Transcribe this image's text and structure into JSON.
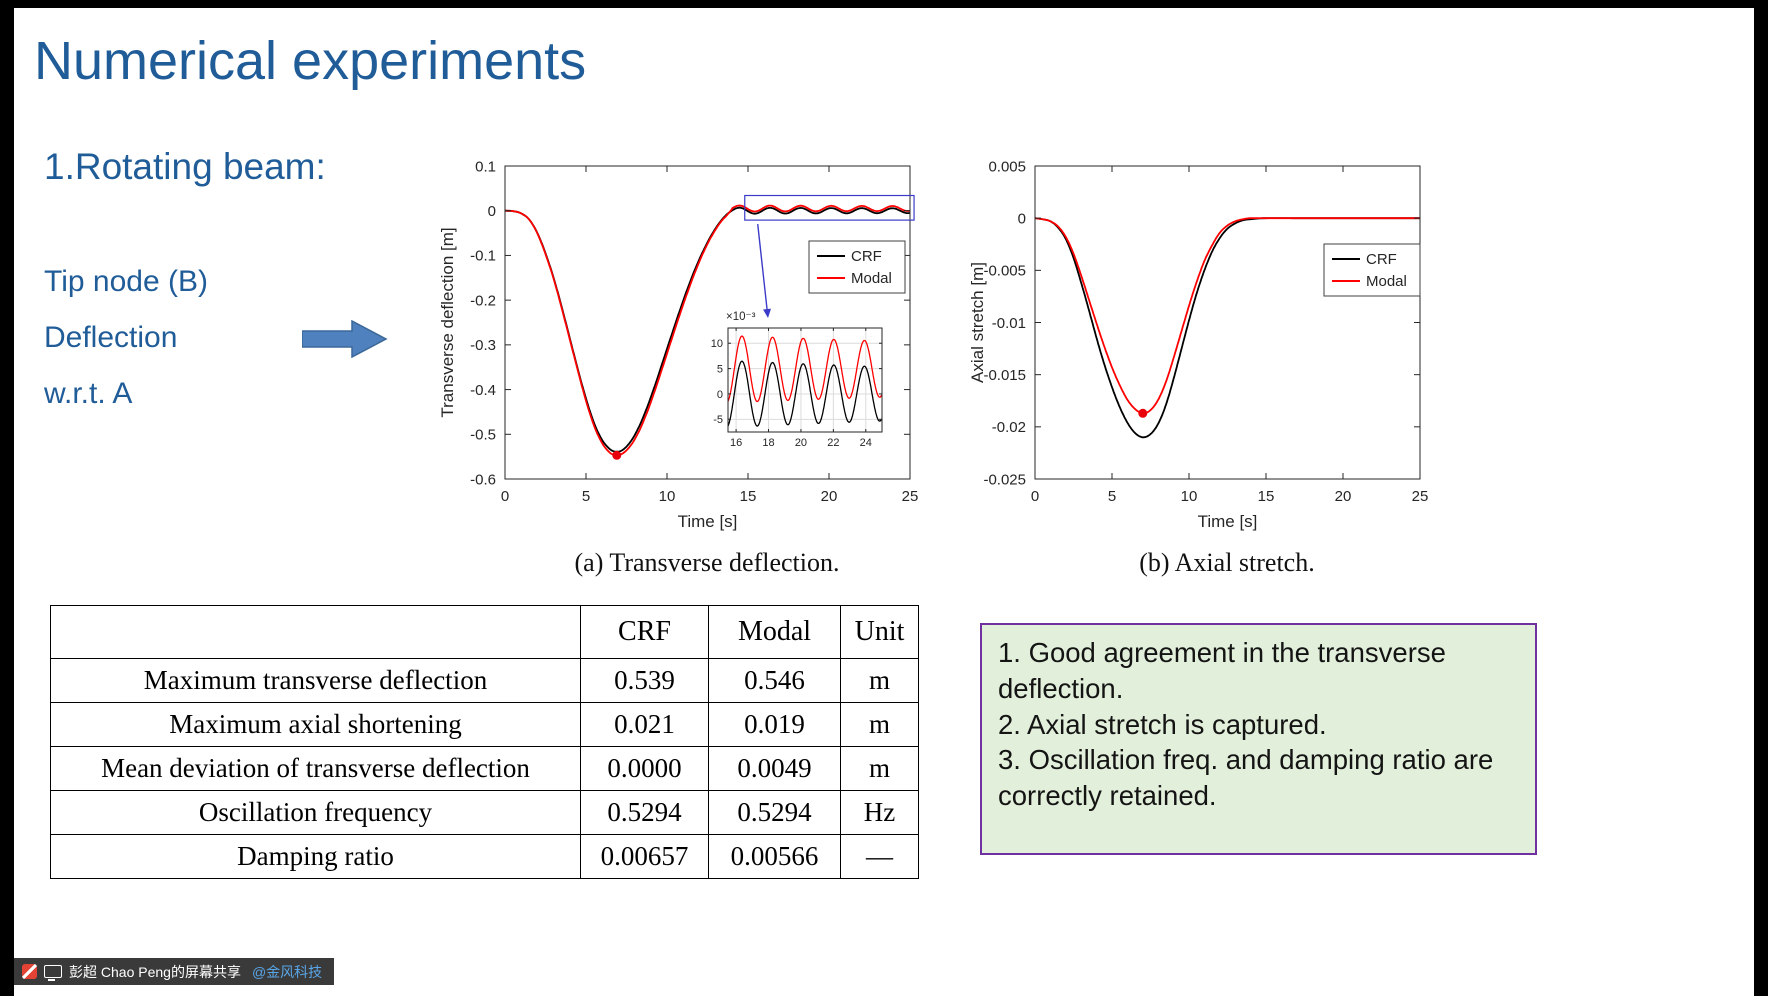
{
  "slide": {
    "title": "Numerical experiments",
    "section_heading": "1.Rotating beam:",
    "left_notes": [
      "Tip node (B)",
      "Deflection",
      "w.r.t. A"
    ],
    "caption_a": "(a) Transverse deflection.",
    "caption_b": "(b) Axial stretch."
  },
  "colors": {
    "title_blue": "#1F5C98",
    "arrow_blue": "#4E81BD",
    "arrow_border": "#3C6899",
    "crf_black": "#000000",
    "modal_red": "#FF0000",
    "note_bg": "#E2EFDA",
    "note_border": "#7030A0",
    "zoom_annotation_blue": "#3B3BC8",
    "marker_red": "#E8000B"
  },
  "results_table": {
    "headers": [
      "",
      "CRF",
      "Modal",
      "Unit"
    ],
    "rows": [
      [
        "Maximum transverse deflection",
        "0.539",
        "0.546",
        "m"
      ],
      [
        "Maximum axial shortening",
        "0.021",
        "0.019",
        "m"
      ],
      [
        "Mean deviation of transverse deflection",
        "0.0000",
        "0.0049",
        "m"
      ],
      [
        "Oscillation frequency",
        "0.5294",
        "0.5294",
        "Hz"
      ],
      [
        "Damping ratio",
        "0.00657",
        "0.00566",
        "—"
      ]
    ]
  },
  "conclusions_box": {
    "items": [
      "1. Good agreement in the transverse deflection.",
      "2. Axial stretch is captured.",
      "3. Oscillation freq. and damping ratio are correctly retained."
    ]
  },
  "share_bar": {
    "text": "彭超 Chao Peng的屏幕共享",
    "mention": "@金风科技"
  },
  "chart_data": [
    {
      "id": "transverse_deflection",
      "type": "line",
      "xlabel": "Time [s]",
      "ylabel": "Transverse deflection [m]",
      "xlim": [
        0,
        25
      ],
      "ylim": [
        -0.6,
        0.1
      ],
      "xticks": {
        "values": [
          0,
          5,
          10,
          15,
          20,
          25
        ],
        "labels": [
          "0",
          "5",
          "10",
          "15",
          "20",
          "25"
        ]
      },
      "yticks": {
        "values": [
          0.1,
          0,
          -0.1,
          -0.2,
          -0.3,
          -0.4,
          -0.5,
          -0.6
        ],
        "labels": [
          "0.1",
          "0",
          "-0.1",
          "-0.2",
          "-0.3",
          "-0.4",
          "-0.5",
          "-0.6"
        ]
      },
      "grid": false,
      "legend": {
        "position": "upper right",
        "entries": [
          "CRF",
          "Modal"
        ]
      },
      "series": [
        {
          "name": "CRF",
          "color": "#000000",
          "anchors": [
            [
              0,
              0
            ],
            [
              0.5,
              -0.001
            ],
            [
              1,
              -0.006
            ],
            [
              1.5,
              -0.02
            ],
            [
              2,
              -0.05
            ],
            [
              2.5,
              -0.095
            ],
            [
              3,
              -0.15
            ],
            [
              3.5,
              -0.215
            ],
            [
              4,
              -0.285
            ],
            [
              4.5,
              -0.355
            ],
            [
              5,
              -0.42
            ],
            [
              5.5,
              -0.475
            ],
            [
              6,
              -0.513
            ],
            [
              6.5,
              -0.534
            ],
            [
              6.9,
              -0.539
            ],
            [
              7.3,
              -0.534
            ],
            [
              7.8,
              -0.514
            ],
            [
              8.3,
              -0.481
            ],
            [
              8.8,
              -0.437
            ],
            [
              9.3,
              -0.386
            ],
            [
              9.8,
              -0.331
            ],
            [
              10.3,
              -0.276
            ],
            [
              10.8,
              -0.222
            ],
            [
              11.3,
              -0.171
            ],
            [
              11.8,
              -0.125
            ],
            [
              12.3,
              -0.085
            ],
            [
              12.8,
              -0.051
            ],
            [
              13.3,
              -0.024
            ],
            [
              13.7,
              -0.008
            ],
            [
              14,
              0
            ]
          ],
          "oscillation_tail": {
            "t_start": 14,
            "t_end": 25,
            "mean": 0.0,
            "amplitude": 0.0068,
            "freq_hz": 0.5294,
            "decay_per_s": 0.022
          }
        },
        {
          "name": "Modal",
          "color": "#FF0000",
          "anchors": [
            [
              0,
              0
            ],
            [
              0.5,
              -0.001
            ],
            [
              1,
              -0.006
            ],
            [
              1.5,
              -0.02
            ],
            [
              2,
              -0.051
            ],
            [
              2.5,
              -0.097
            ],
            [
              3,
              -0.152
            ],
            [
              3.5,
              -0.218
            ],
            [
              4,
              -0.288
            ],
            [
              4.5,
              -0.358
            ],
            [
              5,
              -0.425
            ],
            [
              5.5,
              -0.481
            ],
            [
              6,
              -0.52
            ],
            [
              6.5,
              -0.542
            ],
            [
              6.9,
              -0.546
            ],
            [
              7.3,
              -0.542
            ],
            [
              7.8,
              -0.523
            ],
            [
              8.3,
              -0.491
            ],
            [
              8.8,
              -0.448
            ],
            [
              9.3,
              -0.397
            ],
            [
              9.8,
              -0.342
            ],
            [
              10.3,
              -0.286
            ],
            [
              10.8,
              -0.231
            ],
            [
              11.3,
              -0.179
            ],
            [
              11.8,
              -0.131
            ],
            [
              12.3,
              -0.089
            ],
            [
              12.8,
              -0.054
            ],
            [
              13.3,
              -0.026
            ],
            [
              13.7,
              -0.01
            ],
            [
              14,
              0.003
            ]
          ],
          "oscillation_tail": {
            "t_start": 14,
            "t_end": 25,
            "mean": 0.0049,
            "amplitude": 0.0068,
            "freq_hz": 0.5294,
            "decay_per_s": 0.0188
          }
        }
      ],
      "min_marker": {
        "x": 6.9,
        "y": -0.547,
        "series": "Modal"
      },
      "zoom_box": {
        "t": [
          14.8,
          25.25
        ],
        "y": [
          -0.021,
          0.034
        ]
      },
      "inset": {
        "scale_label": "×10⁻³",
        "xlim": [
          15.5,
          25
        ],
        "ylim": [
          -0.0075,
          0.013
        ],
        "xticks": {
          "values": [
            16,
            18,
            20,
            22,
            24
          ],
          "labels": [
            "16",
            "18",
            "20",
            "22",
            "24"
          ]
        },
        "yticks": {
          "values": [
            0.01,
            0.005,
            0,
            -0.005
          ],
          "labels": [
            "10",
            "5",
            "0",
            "-5"
          ]
        },
        "grid": true
      }
    },
    {
      "id": "axial_stretch",
      "type": "line",
      "xlabel": "Time [s]",
      "ylabel": "Axial stretch [m]",
      "xlim": [
        0,
        25
      ],
      "ylim": [
        -0.025,
        0.005
      ],
      "xticks": {
        "values": [
          0,
          5,
          10,
          15,
          20,
          25
        ],
        "labels": [
          "0",
          "5",
          "10",
          "15",
          "20",
          "25"
        ]
      },
      "yticks": {
        "values": [
          0.005,
          0,
          -0.005,
          -0.01,
          -0.015,
          -0.02,
          -0.025
        ],
        "labels": [
          "0.005",
          "0",
          "-0.005",
          "-0.01",
          "-0.015",
          "-0.02",
          "-0.025"
        ]
      },
      "grid": false,
      "legend": {
        "position": "upper right",
        "entries": [
          "CRF",
          "Modal"
        ]
      },
      "series": [
        {
          "name": "CRF",
          "color": "#000000",
          "anchors": [
            [
              0,
              0
            ],
            [
              0.5,
              -0.0001
            ],
            [
              1,
              -0.0003
            ],
            [
              1.5,
              -0.0009
            ],
            [
              2,
              -0.002
            ],
            [
              2.5,
              -0.0038
            ],
            [
              3,
              -0.0062
            ],
            [
              3.5,
              -0.0088
            ],
            [
              4,
              -0.0115
            ],
            [
              4.5,
              -0.014
            ],
            [
              5,
              -0.0162
            ],
            [
              5.5,
              -0.0181
            ],
            [
              6,
              -0.0196
            ],
            [
              6.5,
              -0.0206
            ],
            [
              7,
              -0.021
            ],
            [
              7.5,
              -0.0207
            ],
            [
              8,
              -0.0197
            ],
            [
              8.5,
              -0.0179
            ],
            [
              9,
              -0.0154
            ],
            [
              9.5,
              -0.0126
            ],
            [
              10,
              -0.0098
            ],
            [
              10.5,
              -0.0072
            ],
            [
              11,
              -0.005
            ],
            [
              11.5,
              -0.0032
            ],
            [
              12,
              -0.0019
            ],
            [
              12.5,
              -0.001
            ],
            [
              13,
              -0.0005
            ],
            [
              13.5,
              -0.0002
            ],
            [
              14,
              -0.0001
            ],
            [
              15,
              0
            ],
            [
              17,
              0
            ],
            [
              20,
              0
            ],
            [
              25,
              0
            ]
          ]
        },
        {
          "name": "Modal",
          "color": "#FF0000",
          "anchors": [
            [
              0,
              0
            ],
            [
              0.5,
              -0.0001
            ],
            [
              1,
              -0.0003
            ],
            [
              1.5,
              -0.0008
            ],
            [
              2,
              -0.0018
            ],
            [
              2.5,
              -0.0034
            ],
            [
              3,
              -0.0055
            ],
            [
              3.5,
              -0.0078
            ],
            [
              4,
              -0.0101
            ],
            [
              4.5,
              -0.0123
            ],
            [
              5,
              -0.0143
            ],
            [
              5.5,
              -0.016
            ],
            [
              6,
              -0.0174
            ],
            [
              6.5,
              -0.0183
            ],
            [
              7,
              -0.0187
            ],
            [
              7.5,
              -0.0184
            ],
            [
              8,
              -0.0174
            ],
            [
              8.5,
              -0.0157
            ],
            [
              9,
              -0.0134
            ],
            [
              9.5,
              -0.0109
            ],
            [
              10,
              -0.0084
            ],
            [
              10.5,
              -0.0061
            ],
            [
              11,
              -0.0041
            ],
            [
              11.5,
              -0.0026
            ],
            [
              12,
              -0.0014
            ],
            [
              12.5,
              -0.0007
            ],
            [
              13,
              -0.0003
            ],
            [
              13.5,
              -0.0001
            ],
            [
              14,
              0
            ],
            [
              15,
              0
            ],
            [
              17,
              0
            ],
            [
              20,
              0
            ],
            [
              25,
              0
            ]
          ]
        }
      ],
      "min_marker": {
        "x": 7.0,
        "y": -0.0187,
        "series": "Modal"
      }
    }
  ]
}
